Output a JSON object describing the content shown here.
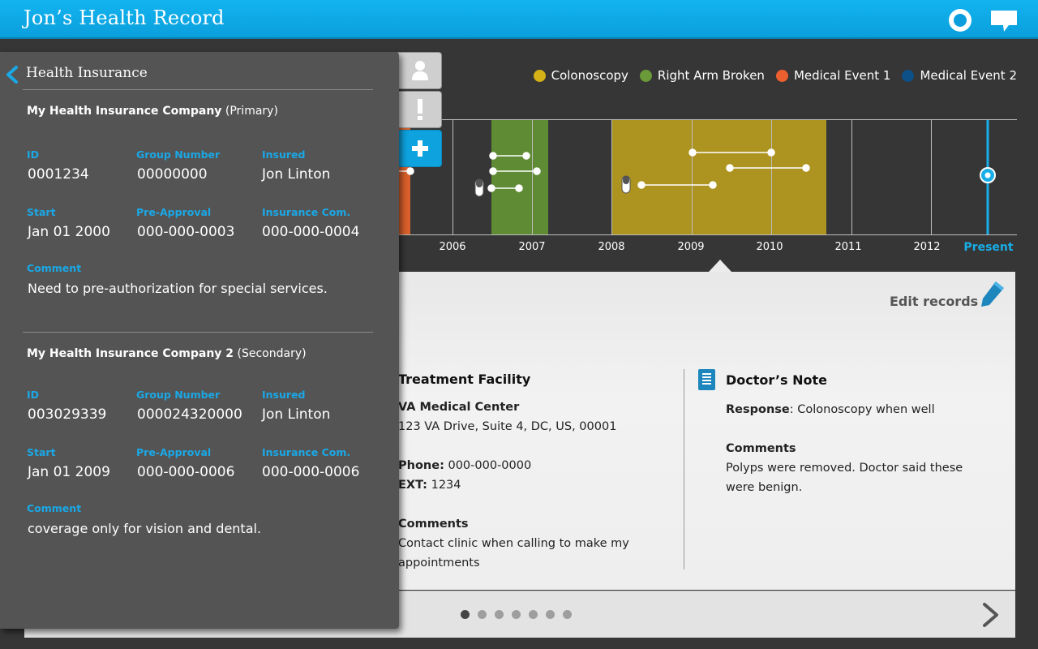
{
  "header": {
    "title": "Jon’s Health Record"
  },
  "legend": [
    {
      "label": "Colonoscopy",
      "color": "#d4b116"
    },
    {
      "label": "Right Arm Broken",
      "color": "#6b9a38"
    },
    {
      "label": "Medical Event 1",
      "color": "#ec5f2e"
    },
    {
      "label": "Medical Event 2",
      "color": "#0d4f87"
    }
  ],
  "timeline": {
    "years": [
      "2006",
      "2007",
      "2008",
      "2009",
      "2010",
      "2011",
      "2012"
    ],
    "present_label": "Present"
  },
  "edit": {
    "label": "Edit records"
  },
  "facility": {
    "title": "Treatment Facility",
    "name": "VA Medical Center",
    "address": "123 VA Drive, Suite 4, DC, US, 00001",
    "phone_label": "Phone:",
    "phone": "000-000-0000",
    "ext_label": "EXT:",
    "ext": "1234",
    "comments_label": "Comments",
    "comments_line1": "Contact clinic when calling to make my",
    "comments_line2": "appointments"
  },
  "doctor_note": {
    "title": "Doctor’s Note",
    "response_label": "Response",
    "response": ": Colonoscopy when well",
    "comments_label": "Comments",
    "comments_line1": "Polyps were removed. Doctor said these",
    "comments_line2": "were benign."
  },
  "pagination": {
    "count": 7,
    "active_index": 0
  },
  "insurance": {
    "title": "Health Insurance",
    "policies": [
      {
        "company": "My Health Insurance Company",
        "type": "(Primary)",
        "id_label": "ID",
        "id": "0001234",
        "group_label": "Group Number",
        "group": "00000000",
        "insured_label": "Insured",
        "insured": "Jon Linton",
        "start_label": "Start",
        "start": "Jan 01 2000",
        "preapproval_label": "Pre-Approval",
        "preapproval": "000-000-0003",
        "inscom_label": "Insurance Com.",
        "inscom": "000-000-0004",
        "comment_label": "Comment",
        "comment": "Need to pre-authorization for special services."
      },
      {
        "company": "My Health Insurance Company 2",
        "type": "(Secondary)",
        "id_label": "ID",
        "id": "003029339",
        "group_label": "Group Number",
        "group": "000024320000",
        "insured_label": "Insured",
        "insured": "Jon Linton",
        "start_label": "Start",
        "start": "Jan 01 2009",
        "preapproval_label": "Pre-Approval",
        "preapproval": "000-000-0006",
        "inscom_label": "Insurance Com.",
        "inscom": "000-000-0006",
        "comment_label": "Comment",
        "comment": "coverage only for vision and dental."
      }
    ]
  },
  "icons": {
    "back": "chevron-left-icon",
    "target": "target-icon",
    "chat": "chat-bubble-icon",
    "person": "person-icon",
    "alert": "exclamation-icon",
    "add": "plus-icon",
    "edit": "pencil-icon",
    "note": "document-icon",
    "next": "chevron-right-icon",
    "pill": "pill-icon"
  }
}
